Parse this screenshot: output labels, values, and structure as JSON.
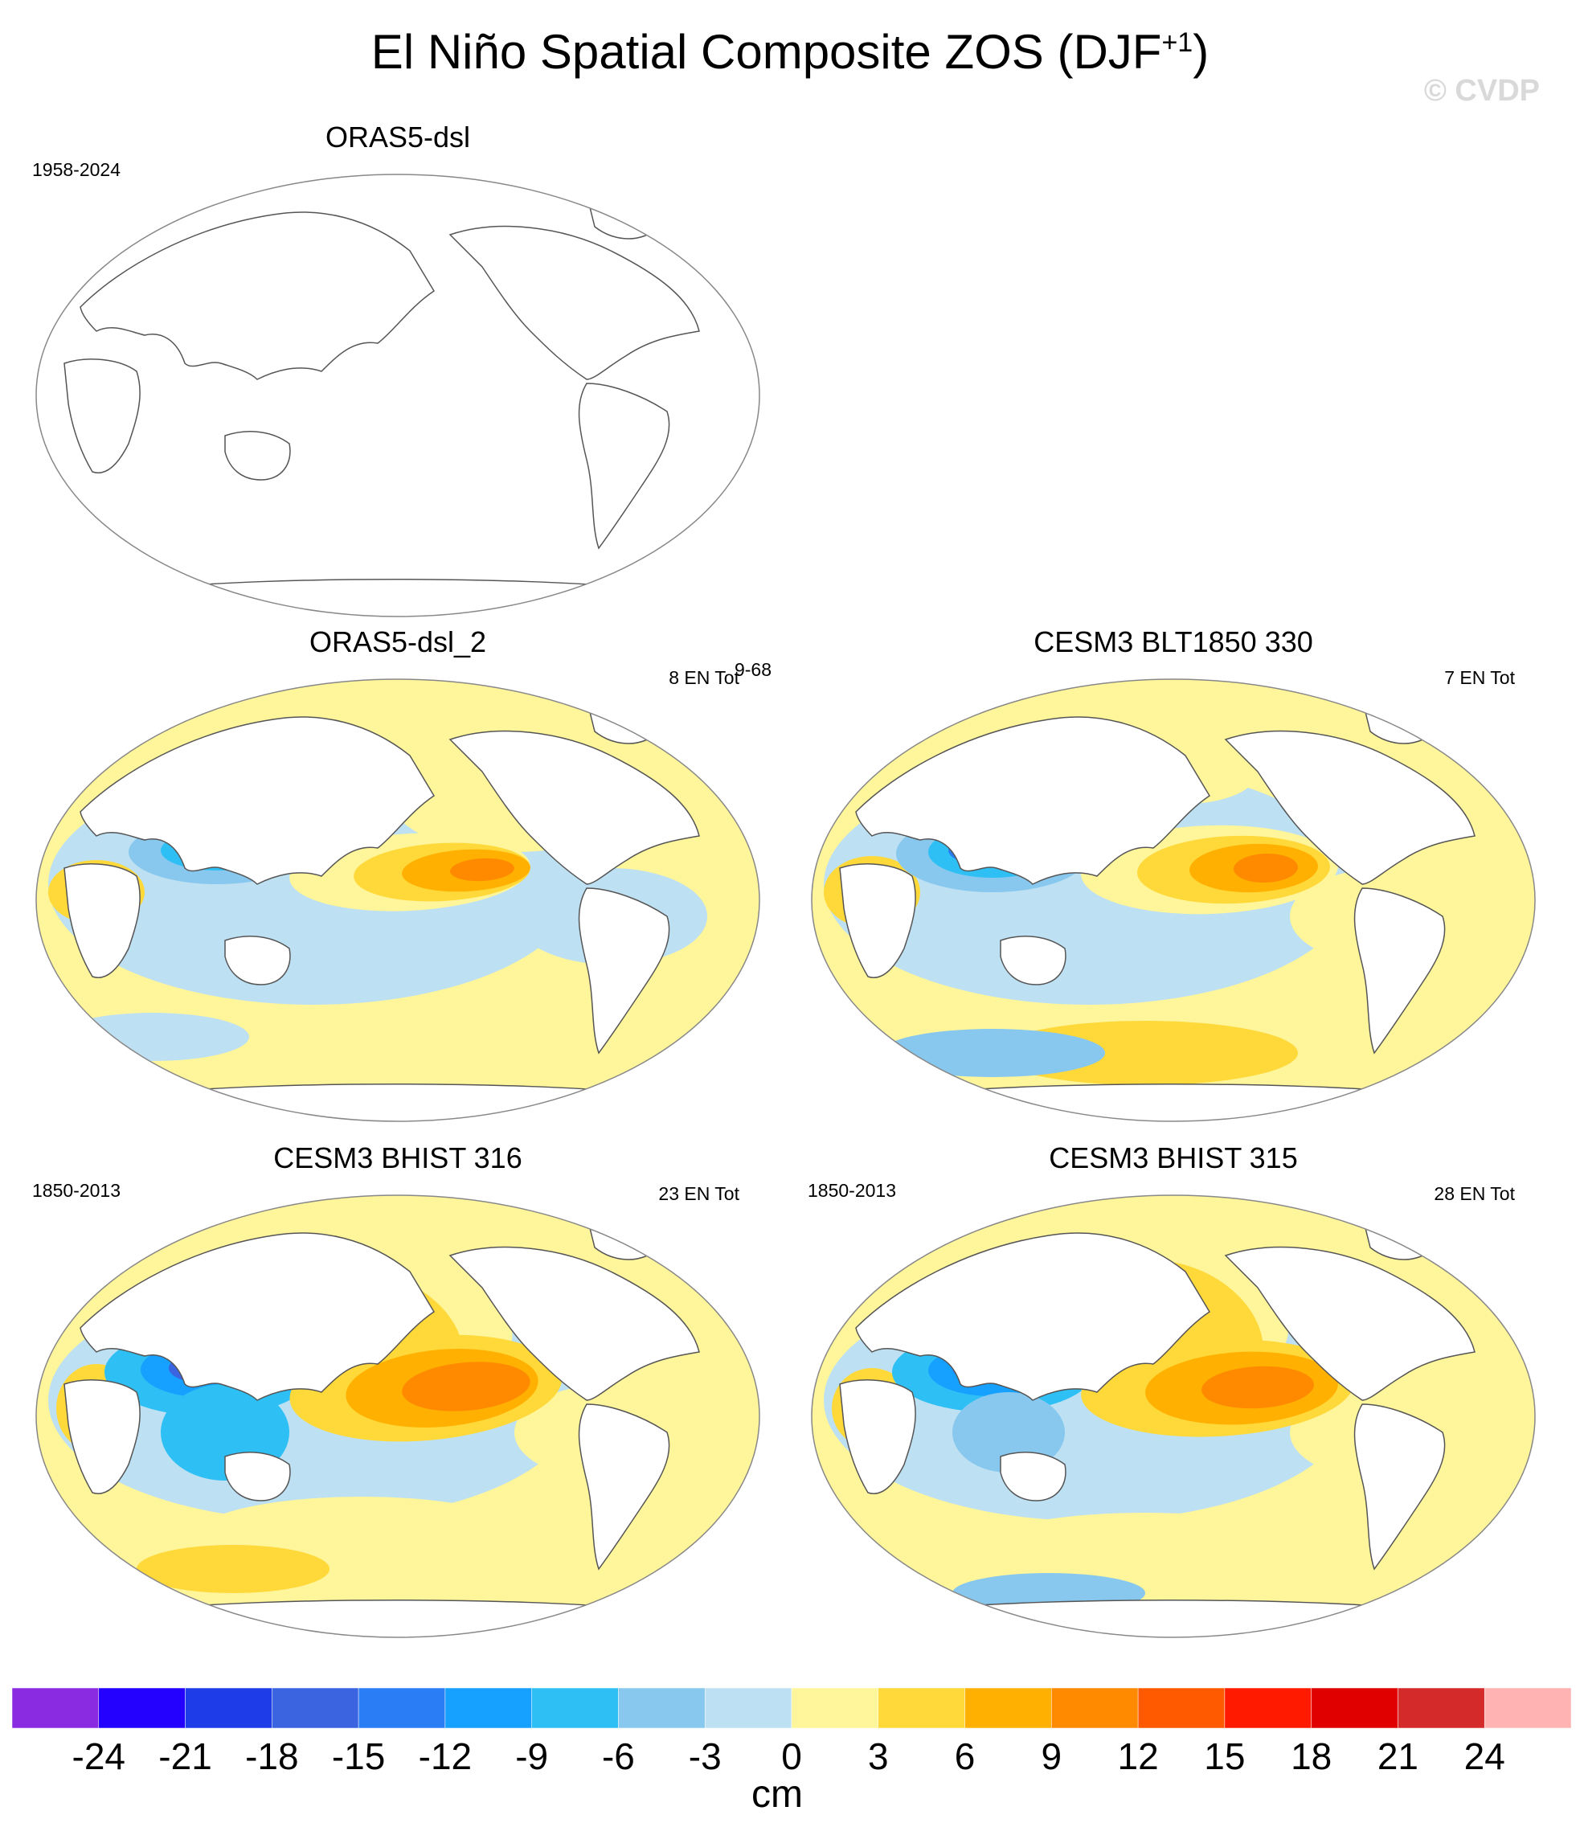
{
  "figure": {
    "title_main": "El Niño Spatial Composite ZOS (DJF",
    "title_sup": "+1",
    "title_end": ")",
    "watermark": "© CVDP"
  },
  "panels": [
    {
      "id": "p1",
      "title": "ORAS5-dsl",
      "left_label": "1958-2024",
      "right_label": "",
      "filled": false,
      "style": "none"
    },
    {
      "id": "p2",
      "title": "ORAS5-dsl_2",
      "left_label": "",
      "right_label": "8 EN Tot",
      "extra_label": "9-68",
      "filled": true,
      "style": "obs"
    },
    {
      "id": "p3",
      "title": "CESM3 BLT1850 330",
      "left_label": "",
      "right_label": "7 EN Tot",
      "filled": true,
      "style": "m1"
    },
    {
      "id": "p4",
      "title": "CESM3 BHIST 316",
      "left_label": "1850-2013",
      "right_label": "23 EN Tot",
      "filled": true,
      "style": "m2"
    },
    {
      "id": "p5",
      "title": "CESM3 BHIST 315",
      "left_label": "1850-2013",
      "right_label": "28 EN Tot",
      "filled": true,
      "style": "m3"
    }
  ],
  "colorbar": {
    "units": "cm",
    "levels": [
      -24,
      -21,
      -18,
      -15,
      -12,
      -9,
      -6,
      -3,
      0,
      3,
      6,
      9,
      12,
      15,
      18,
      21,
      24
    ],
    "labels": [
      "-24",
      "-21",
      "-18",
      "-15",
      "-12",
      "-9",
      "-6",
      "-3",
      "0",
      "3",
      "6",
      "9",
      "12",
      "15",
      "18",
      "21",
      "24"
    ],
    "colors": [
      "#8a2be2",
      "#2400ff",
      "#1e3ce8",
      "#3a64e0",
      "#2b7df5",
      "#16a0ff",
      "#2ec0f5",
      "#88c8ee",
      "#bde0f2",
      "#fff59a",
      "#ffd83a",
      "#ffb000",
      "#ff8a00",
      "#ff5a00",
      "#ff1a00",
      "#e00000",
      "#d42a2a",
      "#ffb3b3"
    ]
  }
}
